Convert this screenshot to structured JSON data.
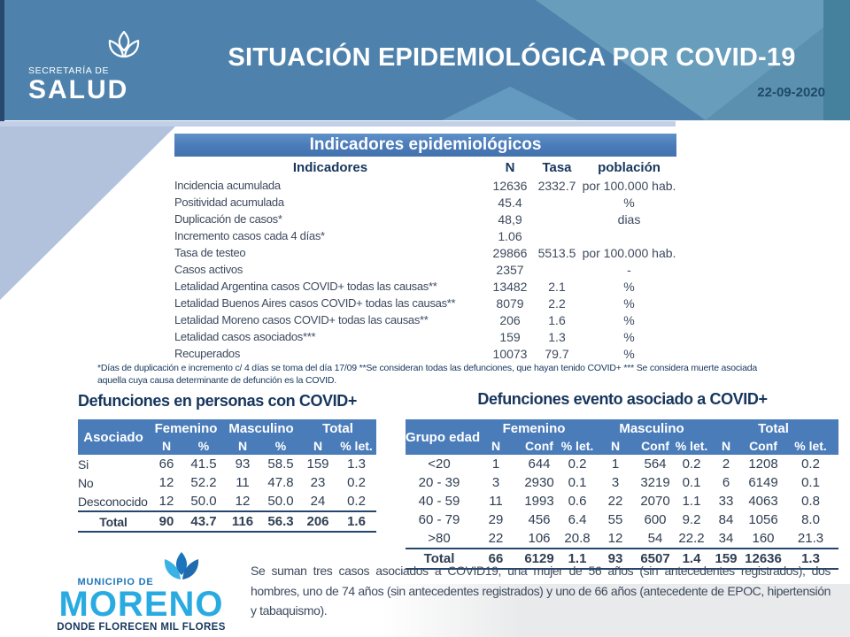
{
  "header": {
    "logo_top": "SECRETARÍA DE",
    "logo_name": "SALUD",
    "title": "SITUACIÓN EPIDEMIOLÓGICA POR COVID-19",
    "date": "22-09-2020"
  },
  "indicators": {
    "title": "Indicadores epidemiológicos",
    "columns": [
      "Indicadores",
      "N",
      "Tasa",
      "población"
    ],
    "rows": [
      [
        "Incidencia acumulada",
        "12636",
        "2332.7",
        "por 100.000 hab."
      ],
      [
        "Positividad acumulada",
        "45.4",
        "",
        "%"
      ],
      [
        "Duplicación de casos*",
        "48,9",
        "",
        "dias"
      ],
      [
        "Incremento casos cada 4 días*",
        "1.06",
        "",
        ""
      ],
      [
        "Tasa de testeo",
        "29866",
        "5513.5",
        "por 100.000 hab."
      ],
      [
        "Casos activos",
        "2357",
        "",
        "-"
      ],
      [
        "Letalidad Argentina casos COVID+ todas las causas**",
        "13482",
        "2.1",
        "%"
      ],
      [
        "Letalidad Buenos Aires casos COVID+ todas las causas**",
        "8079",
        "2.2",
        "%"
      ],
      [
        "Letalidad Moreno casos COVID+ todas las causas**",
        "206",
        "1.6",
        "%"
      ],
      [
        "Letalidad casos asociados***",
        "159",
        "1.3",
        "%"
      ],
      [
        "Recuperados",
        "10073",
        "79.7",
        "%"
      ]
    ],
    "footnote": "*Días de duplicación e incremento c/ 4 días se toma del día 17/09 **Se consideran todas las defunciones, que hayan tenido COVID+ *** Se considera muerte asociada aquella cuya causa determinante de defunción es la COVID."
  },
  "deaths_persons": {
    "title": "Defunciones en personas con COVID+",
    "group_headers": [
      "Asociado",
      "Femenino",
      "Masculino",
      "Total"
    ],
    "sub_headers": [
      "N",
      "%",
      "N",
      "%",
      "N",
      "% let."
    ],
    "rows": [
      [
        "Si",
        "66",
        "41.5",
        "93",
        "58.5",
        "159",
        "1.3"
      ],
      [
        "No",
        "12",
        "52.2",
        "11",
        "47.8",
        "23",
        "0.2"
      ],
      [
        "Desconocido",
        "12",
        "50.0",
        "12",
        "50.0",
        "24",
        "0.2"
      ]
    ],
    "total_rows": [
      [
        "Total",
        "90",
        "43.7",
        "116",
        "56.3",
        "206",
        "1.6"
      ]
    ]
  },
  "deaths_events": {
    "title": "Defunciones evento asociado a COVID+",
    "group_headers": [
      "Grupo edad",
      "Femenino",
      "Masculino",
      "Total"
    ],
    "sub_headers": [
      "N",
      "Conf",
      "% let.",
      "N",
      "Conf",
      "% let.",
      "N",
      "Conf",
      "% let."
    ],
    "rows": [
      [
        "<20",
        "1",
        "644",
        "0.2",
        "1",
        "564",
        "0.2",
        "2",
        "1208",
        "0.2"
      ],
      [
        "20 - 39",
        "3",
        "2930",
        "0.1",
        "3",
        "3219",
        "0.1",
        "6",
        "6149",
        "0.1"
      ],
      [
        "40 - 59",
        "11",
        "1993",
        "0.6",
        "22",
        "2070",
        "1.1",
        "33",
        "4063",
        "0.8"
      ],
      [
        "60 - 79",
        "29",
        "456",
        "6.4",
        "55",
        "600",
        "9.2",
        "84",
        "1056",
        "8.0"
      ],
      [
        ">80",
        "22",
        "106",
        "20.8",
        "12",
        "54",
        "22.2",
        "34",
        "160",
        "21.3"
      ]
    ],
    "total_rows": [
      [
        "Total",
        "66",
        "6129",
        "1.1",
        "93",
        "6507",
        "1.4",
        "159",
        "12636",
        "1.3"
      ]
    ]
  },
  "footer": {
    "logo_top": "MUNICIPIO DE",
    "logo_name": "MORENO",
    "logo_tagline": "DONDE FLORECEN MIL FLORES",
    "note": "Se suman tres casos asociados a COVID19, una mujer de 56 años (sin antecedentes registrados), dos hombres, uno de 74 años (sin antecedentes registrados) y uno de 66 años (antecedente de EPOC, hipertensión y tabaquismo)."
  },
  "colors": {
    "header_blue": "#4e82ac",
    "header_light_blue": "#689dbc",
    "header_teal_strip": "#45819c",
    "table_header_blue": "#4a7cba",
    "navy_text": "#17365d",
    "body_text": "#3e4a5e",
    "wedge_periwinkle": "#b2c2dc",
    "moreno_dark_blue": "#1b75bc",
    "moreno_light_blue": "#29abe2"
  }
}
